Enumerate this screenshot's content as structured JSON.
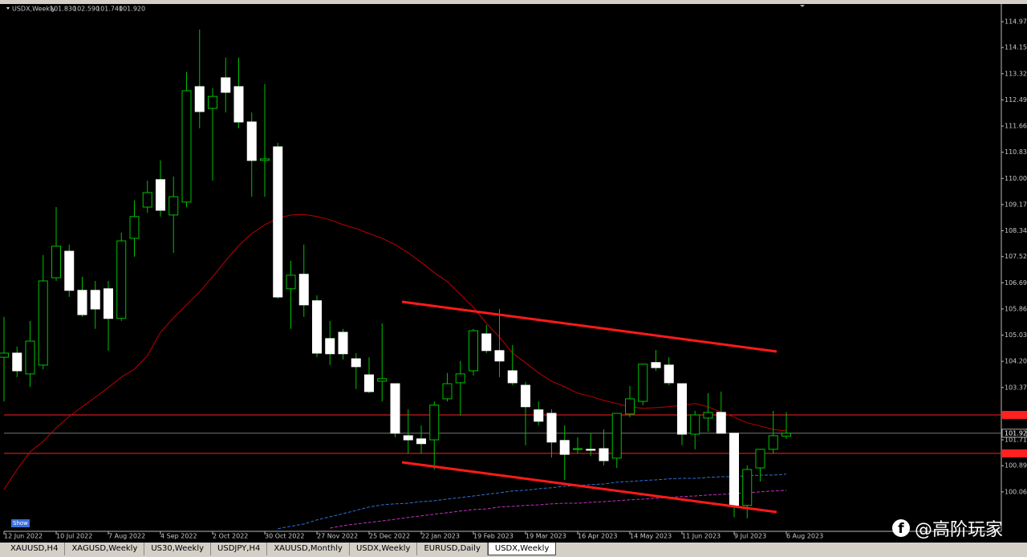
{
  "chart_data": {
    "type": "candlestick",
    "title": "USDX,Weekly",
    "ohlc_labels": [
      "101.830",
      "102.590",
      "101.740",
      "101.920"
    ],
    "categories": [
      "12 Jun 2022",
      null,
      null,
      null,
      "10 Jul 2022",
      null,
      null,
      null,
      "7 Aug 2022",
      null,
      null,
      null,
      "4 Sep 2022",
      null,
      null,
      null,
      "2 Oct 2022",
      null,
      null,
      null,
      "30 Oct 2022",
      null,
      null,
      null,
      "27 Nov 2022",
      null,
      null,
      null,
      "25 Dec 2022",
      null,
      null,
      null,
      "22 Jan 2023",
      null,
      null,
      null,
      "19 Feb 2023",
      null,
      null,
      null,
      "19 Mar 2023",
      null,
      null,
      null,
      "16 Apr 2023",
      null,
      null,
      null,
      "14 May 2023",
      null,
      null,
      null,
      "11 Jun 2023",
      null,
      null,
      null,
      "9 Jul 2023",
      null,
      null,
      null,
      "6 Aug 2023"
    ],
    "open": [
      104.33,
      104.46,
      103.8,
      104.08,
      106.85,
      107.69,
      106.45,
      106.45,
      106.5,
      105.56,
      108.1,
      109.09,
      109.96,
      108.84,
      109.25,
      112.91,
      112.22,
      113.19,
      112.91,
      111.79,
      110.57,
      111.0,
      106.5,
      106.96,
      106.12,
      104.92,
      105.12,
      104.28,
      103.77,
      103.57,
      103.49,
      101.84,
      101.74,
      101.71,
      103.01,
      103.52,
      103.9,
      105.07,
      104.54,
      103.9,
      103.44,
      102.66,
      102.55,
      101.69,
      101.41,
      101.41,
      101.43,
      101.13,
      102.53,
      102.93,
      104.16,
      104.08,
      103.49,
      101.89,
      102.4,
      102.58,
      101.92,
      99.63,
      100.82,
      101.41,
      101.83
    ],
    "high": [
      105.61,
      104.67,
      105.48,
      107.57,
      109.09,
      107.9,
      106.88,
      106.75,
      106.75,
      108.28,
      109.3,
      109.93,
      110.57,
      110.06,
      113.37,
      114.72,
      112.86,
      113.83,
      113.83,
      112.09,
      112.99,
      111.13,
      107.39,
      107.9,
      106.29,
      105.48,
      105.23,
      104.46,
      104.33,
      105.4,
      103.49,
      102.68,
      102.17,
      102.93,
      103.83,
      104.21,
      105.23,
      105.35,
      105.86,
      104.72,
      103.55,
      102.93,
      102.68,
      102.17,
      101.79,
      101.92,
      102.04,
      102.55,
      103.42,
      104.13,
      104.56,
      104.33,
      103.49,
      102.63,
      103.19,
      103.24,
      101.92,
      100.9,
      101.41,
      102.63,
      102.59
    ],
    "low": [
      102.93,
      103.7,
      103.39,
      103.95,
      106.75,
      106.24,
      105.61,
      105.23,
      104.54,
      105.48,
      107.52,
      108.91,
      108.79,
      107.64,
      109.09,
      111.59,
      109.93,
      112.09,
      111.59,
      109.42,
      109.42,
      106.19,
      105.23,
      105.61,
      104.33,
      104.08,
      104.26,
      103.32,
      103.19,
      102.93,
      101.79,
      101.28,
      101.28,
      100.77,
      102.93,
      102.48,
      103.75,
      104.46,
      103.7,
      103.44,
      101.54,
      102.17,
      101.15,
      100.44,
      101.28,
      101.2,
      100.9,
      100.82,
      102.43,
      102.81,
      103.9,
      103.44,
      101.54,
      101.41,
      101.97,
      101.92,
      99.25,
      99.22,
      100.39,
      101.28,
      101.74
    ],
    "close": [
      104.46,
      103.9,
      104.84,
      106.75,
      107.85,
      106.45,
      105.68,
      105.86,
      105.56,
      108.02,
      108.79,
      109.55,
      108.99,
      109.42,
      112.78,
      112.12,
      112.6,
      112.73,
      111.79,
      110.57,
      110.62,
      106.24,
      106.93,
      105.99,
      104.46,
      104.44,
      104.44,
      104.03,
      103.24,
      103.65,
      101.92,
      101.71,
      101.59,
      102.81,
      103.49,
      103.8,
      105.17,
      104.54,
      104.21,
      103.52,
      102.76,
      102.3,
      101.64,
      101.25,
      101.43,
      101.38,
      101.05,
      102.55,
      103.01,
      104.11,
      104.0,
      103.52,
      101.89,
      102.5,
      102.58,
      101.92,
      99.63,
      100.77,
      101.41,
      101.84,
      101.92
    ],
    "up_color": "#00c000",
    "down_color": "#ffffff",
    "series": [
      {
        "color": "#c00000",
        "dash": false,
        "values": [
          100.14,
          100.77,
          101.33,
          101.66,
          102.09,
          102.45,
          102.76,
          103.06,
          103.37,
          103.7,
          103.95,
          104.38,
          105.12,
          105.58,
          105.99,
          106.4,
          106.88,
          107.39,
          107.87,
          108.25,
          108.53,
          108.74,
          108.84,
          108.86,
          108.79,
          108.69,
          108.53,
          108.41,
          108.25,
          108.1,
          107.9,
          107.64,
          107.34,
          107.01,
          106.73,
          106.32,
          105.91,
          105.4,
          104.97,
          104.46,
          104.16,
          103.83,
          103.57,
          103.39,
          103.19,
          103.09,
          102.96,
          102.86,
          102.76,
          102.71,
          102.73,
          102.76,
          102.81,
          102.86,
          102.76,
          102.58,
          102.43,
          102.25,
          102.15,
          102.04,
          101.99
        ]
      },
      {
        "color": "#3070d0",
        "dash": true,
        "values": [
          null,
          null,
          null,
          null,
          null,
          null,
          null,
          null,
          null,
          null,
          null,
          null,
          null,
          null,
          null,
          null,
          null,
          null,
          null,
          null,
          null,
          98.89,
          98.97,
          99.04,
          99.17,
          99.27,
          99.37,
          99.47,
          99.58,
          99.65,
          99.68,
          99.7,
          99.75,
          99.78,
          99.83,
          99.88,
          99.93,
          99.98,
          100.03,
          100.09,
          100.11,
          100.16,
          100.19,
          100.24,
          100.26,
          100.29,
          100.31,
          100.37,
          100.39,
          100.42,
          100.44,
          100.47,
          100.49,
          100.49,
          100.52,
          100.54,
          100.54,
          100.57,
          100.59,
          100.59,
          100.62
        ]
      },
      {
        "color": "#c030c0",
        "dash": true,
        "values": [
          null,
          null,
          null,
          null,
          null,
          null,
          null,
          null,
          null,
          null,
          null,
          null,
          null,
          null,
          null,
          null,
          null,
          null,
          null,
          null,
          null,
          null,
          null,
          null,
          null,
          98.91,
          98.99,
          99.04,
          99.09,
          99.14,
          99.19,
          99.25,
          99.3,
          99.35,
          99.4,
          99.45,
          99.5,
          99.52,
          99.58,
          99.6,
          99.63,
          99.65,
          99.68,
          99.7,
          99.7,
          99.73,
          99.75,
          99.78,
          99.81,
          99.83,
          99.86,
          99.88,
          99.91,
          99.93,
          99.96,
          99.98,
          100.01,
          100.03,
          100.06,
          100.09,
          100.11
        ]
      }
    ],
    "levels": [
      102.5,
      101.28
    ],
    "level_color": "#ff2020",
    "price_line": {
      "value": 101.92,
      "label": "101.920"
    },
    "ylim": [
      98.86,
      115.53
    ],
    "yticks": [
      {
        "value": 114.97,
        "label": "114.970"
      },
      {
        "value": 114.15,
        "label": "114.150"
      },
      {
        "value": 113.32,
        "label": "113.320"
      },
      {
        "value": 112.49,
        "label": "112.490"
      },
      {
        "value": 111.66,
        "label": "111.660"
      },
      {
        "value": 110.83,
        "label": "110.830"
      },
      {
        "value": 110.0,
        "label": "110.000"
      },
      {
        "value": 109.17,
        "label": "109.170"
      },
      {
        "value": 108.34,
        "label": "108.340"
      },
      {
        "value": 107.52,
        "label": "107.520"
      },
      {
        "value": 106.69,
        "label": "106.690"
      },
      {
        "value": 105.86,
        "label": "105.860"
      },
      {
        "value": 105.03,
        "label": "105.030"
      },
      {
        "value": 104.2,
        "label": "104.200"
      },
      {
        "value": 103.37,
        "label": "103.370"
      },
      {
        "value": 101.71,
        "label": "101.710"
      },
      {
        "value": 100.89,
        "label": "100.890"
      },
      {
        "value": 100.06,
        "label": "100.060"
      }
    ]
  },
  "tabs": [
    "XAUUSD,H4",
    "XAGUSD,Weekly",
    "US30,Weekly",
    "USDJPY,H4",
    "XAUUSD,Monthly",
    "USDX,Weekly",
    "EURUSD,Daily",
    "USDX,Weekly"
  ],
  "show_button": "Show",
  "watermark": "@高阶玩家"
}
